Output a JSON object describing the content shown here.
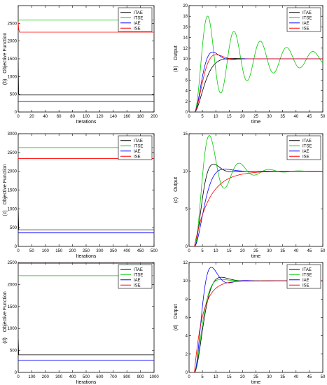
{
  "chart_data": [
    {
      "panel": "obj-b",
      "type": "line",
      "xlabel": "Iterations",
      "ylabel": "Objective Function",
      "panel_letter": "(b)",
      "xlim": [
        0,
        200
      ],
      "ylim": [
        0,
        3000
      ],
      "xticks": [
        "0",
        "20",
        "40",
        "60",
        "80",
        "100",
        "120",
        "140",
        "160",
        "180",
        "200"
      ],
      "yticks": [
        "0",
        "500",
        "1000",
        "1500",
        "2000",
        "2500"
      ],
      "legend_position": "top-right",
      "series": [
        {
          "name": "ITAE",
          "color": "#000000",
          "x": [
            0,
            0.6,
            1.4,
            200
          ],
          "y": [
            1400,
            520,
            480,
            480
          ]
        },
        {
          "name": "ITSE",
          "color": "#00cc00",
          "x": [
            0,
            200
          ],
          "y": [
            2590,
            2590
          ]
        },
        {
          "name": "IAE",
          "color": "#0000ff",
          "x": [
            0,
            200
          ],
          "y": [
            300,
            300
          ]
        },
        {
          "name": "ISE",
          "color": "#ff0000",
          "x": [
            0,
            0.6,
            2,
            200
          ],
          "y": [
            2560,
            2350,
            2250,
            2250
          ]
        }
      ]
    },
    {
      "panel": "out-b",
      "type": "line",
      "xlabel": "time",
      "ylabel": "Output",
      "panel_letter": "(b)",
      "xlim": [
        0,
        50
      ],
      "ylim": [
        0,
        20
      ],
      "xticks": [
        "0",
        "5",
        "10",
        "15",
        "20",
        "25",
        "30",
        "35",
        "40",
        "45",
        "50"
      ],
      "yticks": [
        "0",
        "2",
        "4",
        "6",
        "8",
        "10",
        "12",
        "14",
        "16",
        "18",
        "20"
      ],
      "legend_position": "top-right",
      "series": [
        {
          "name": "ITAE",
          "color": "#000000",
          "model": "resp",
          "params": {
            "K": 10,
            "d": 2,
            "wn": 0.42,
            "z": 0.85
          }
        },
        {
          "name": "ITSE",
          "color": "#00cc00",
          "model": "resp",
          "params": {
            "K": 10,
            "d": 2,
            "wn": 0.64,
            "z": 0.07
          }
        },
        {
          "name": "IAE",
          "color": "#0000ff",
          "model": "resp",
          "params": {
            "K": 10,
            "d": 2,
            "wn": 0.55,
            "z": 0.55
          }
        },
        {
          "name": "ISE",
          "color": "#ff0000",
          "model": "resp",
          "params": {
            "K": 10,
            "d": 2,
            "wn": 0.5,
            "z": 0.63
          }
        }
      ]
    },
    {
      "panel": "obj-c",
      "type": "line",
      "xlabel": "Iterations",
      "ylabel": "Objective Function",
      "panel_letter": "(c)",
      "xlim": [
        0,
        500
      ],
      "ylim": [
        0,
        3000
      ],
      "xticks": [
        "0",
        "50",
        "100",
        "150",
        "200",
        "250",
        "300",
        "350",
        "400",
        "450",
        "500"
      ],
      "yticks": [
        "0",
        "500",
        "1000",
        "1500",
        "2000",
        "2500",
        "3000"
      ],
      "legend_position": "top-right",
      "series": [
        {
          "name": "ITAE",
          "color": "#000000",
          "x": [
            0,
            1,
            2,
            500
          ],
          "y": [
            1050,
            700,
            440,
            440
          ]
        },
        {
          "name": "ITSE",
          "color": "#00cc00",
          "x": [
            0,
            500
          ],
          "y": [
            2630,
            2630
          ]
        },
        {
          "name": "IAE",
          "color": "#0000ff",
          "x": [
            0,
            500
          ],
          "y": [
            360,
            360
          ]
        },
        {
          "name": "ISE",
          "color": "#ff0000",
          "x": [
            0,
            500
          ],
          "y": [
            2340,
            2340
          ]
        }
      ]
    },
    {
      "panel": "out-c",
      "type": "line",
      "xlabel": "time",
      "ylabel": "Output",
      "panel_letter": "(c)",
      "xlim": [
        0,
        50
      ],
      "ylim": [
        0,
        15
      ],
      "xticks": [
        "0",
        "5",
        "10",
        "15",
        "20",
        "25",
        "30",
        "35",
        "40",
        "45",
        "50"
      ],
      "yticks": [
        "0",
        "5",
        "10",
        "15"
      ],
      "legend_position": "top-right",
      "series": [
        {
          "name": "ITAE",
          "color": "#000000",
          "model": "resp",
          "params": {
            "K": 10,
            "d": 2,
            "wn": 0.55,
            "z": 0.6
          }
        },
        {
          "name": "ITSE",
          "color": "#00cc00",
          "model": "resp",
          "params": {
            "K": 10,
            "d": 2,
            "wn": 0.58,
            "z": 0.23
          }
        },
        {
          "name": "IAE",
          "color": "#0000ff",
          "model": "resp",
          "params": {
            "K": 10,
            "d": 2,
            "wn": 0.42,
            "z": 0.75
          }
        },
        {
          "name": "ISE",
          "color": "#ff0000",
          "model": "exp",
          "params": {
            "K": 10,
            "d": 2,
            "tau": 5.5
          }
        }
      ]
    },
    {
      "panel": "obj-d",
      "type": "line",
      "xlabel": "Iterations",
      "ylabel": "Objective Function",
      "panel_letter": "(d)",
      "xlim": [
        0,
        1000
      ],
      "ylim": [
        0,
        2500
      ],
      "xticks": [
        "0",
        "100",
        "200",
        "300",
        "400",
        "500",
        "600",
        "700",
        "800",
        "900",
        "1000"
      ],
      "yticks": [
        "0",
        "500",
        "1000",
        "1500",
        "2000",
        "2500"
      ],
      "legend_position": "top-right",
      "series": [
        {
          "name": "ITAE",
          "color": "#000000",
          "x": [
            0,
            2,
            4,
            1000
          ],
          "y": [
            760,
            560,
            400,
            400
          ]
        },
        {
          "name": "ITSE",
          "color": "#00cc00",
          "x": [
            0,
            1000
          ],
          "y": [
            2200,
            2200
          ]
        },
        {
          "name": "IAE",
          "color": "#0000ff",
          "x": [
            0,
            1000
          ],
          "y": [
            280,
            280
          ]
        },
        {
          "name": "ISE",
          "color": "#ff0000",
          "x": [
            0,
            1000
          ],
          "y": [
            2480,
            2480
          ]
        }
      ]
    },
    {
      "panel": "out-d",
      "type": "line",
      "xlabel": "time",
      "ylabel": "Output",
      "panel_letter": "(d)",
      "xlim": [
        0,
        50
      ],
      "ylim": [
        0,
        12
      ],
      "xticks": [
        "0",
        "5",
        "10",
        "15",
        "20",
        "25",
        "30",
        "35",
        "40",
        "45",
        "50"
      ],
      "yticks": [
        "0",
        "2",
        "4",
        "6",
        "8",
        "10",
        "12"
      ],
      "legend_position": "top-right",
      "series": [
        {
          "name": "ITAE",
          "color": "#000000",
          "model": "resp",
          "params": {
            "K": 10,
            "d": 2,
            "wn": 0.45,
            "z": 0.72
          }
        },
        {
          "name": "ITSE",
          "color": "#00cc00",
          "model": "resp",
          "params": {
            "K": 10,
            "d": 2,
            "wn": 0.52,
            "z": 0.8
          }
        },
        {
          "name": "IAE",
          "color": "#0000ff",
          "model": "resp",
          "params": {
            "K": 10,
            "d": 2,
            "wn": 0.58,
            "z": 0.52
          }
        },
        {
          "name": "ISE",
          "color": "#ff0000",
          "model": "exp",
          "params": {
            "K": 10,
            "d": 2,
            "tau": 3.2
          }
        }
      ]
    }
  ]
}
